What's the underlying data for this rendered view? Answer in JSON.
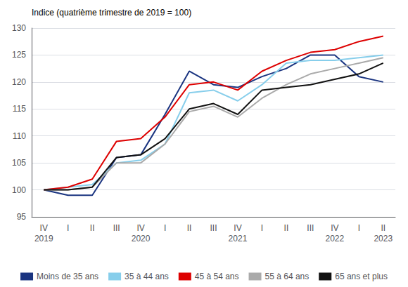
{
  "chart_data": {
    "type": "line",
    "ylabel": "Indice (quatrième trimestre de 2019 = 100)",
    "categories": [
      "IV\n2019",
      "I",
      "II",
      "III",
      "IV\n2020",
      "I",
      "II",
      "III",
      "IV\n2021",
      "I",
      "II",
      "III",
      "IV\n2022",
      "I",
      "II\n2023"
    ],
    "series": [
      {
        "name": "Moins de 35 ans",
        "color": "#1a3480",
        "values": [
          100.0,
          99.0,
          99.0,
          106.0,
          106.5,
          114.0,
          122.0,
          119.5,
          119.0,
          121.0,
          122.5,
          125.0,
          125.0,
          121.0,
          120.0
        ]
      },
      {
        "name": "35 à 44 ans",
        "color": "#87ceeb",
        "values": [
          100.0,
          100.5,
          101.0,
          105.0,
          105.5,
          108.5,
          118.0,
          118.5,
          116.5,
          119.5,
          123.5,
          124.0,
          124.0,
          124.5,
          125.0
        ]
      },
      {
        "name": "45 à 54 ans",
        "color": "#dd0000",
        "values": [
          100.0,
          100.5,
          102.0,
          109.0,
          109.5,
          113.5,
          119.5,
          120.0,
          118.5,
          122.0,
          124.0,
          125.5,
          126.0,
          127.5,
          128.5
        ]
      },
      {
        "name": "55 à 64 ans",
        "color": "#aaaaaa",
        "values": [
          100.0,
          100.0,
          100.5,
          105.0,
          105.0,
          108.5,
          114.5,
          115.5,
          113.5,
          117.0,
          119.5,
          121.5,
          122.5,
          123.5,
          124.5
        ]
      },
      {
        "name": "65 ans et plus",
        "color": "#111111",
        "values": [
          100.0,
          100.0,
          100.5,
          106.0,
          106.5,
          109.5,
          115.0,
          116.0,
          114.0,
          118.5,
          119.0,
          119.5,
          120.5,
          121.5,
          123.5
        ]
      }
    ],
    "ylim": [
      95,
      130
    ],
    "yticks": [
      95,
      100,
      105,
      110,
      115,
      120,
      125,
      130
    ],
    "grid": true,
    "legend": "bottom"
  }
}
